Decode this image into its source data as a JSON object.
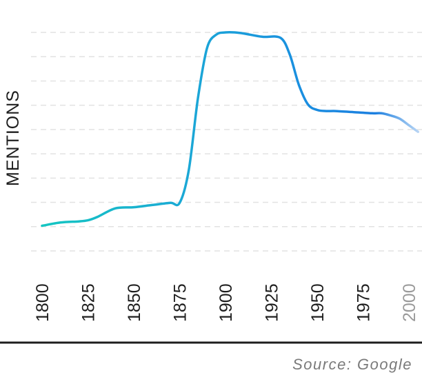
{
  "chart_data": {
    "type": "line",
    "title": "",
    "xlabel": "",
    "ylabel": "MENTIONS",
    "xlim": [
      1800,
      2005
    ],
    "ylim": [
      0,
      10
    ],
    "x_ticks": [
      1800,
      1825,
      1850,
      1875,
      1900,
      1925,
      1950,
      1975,
      2000
    ],
    "faded_ticks": [
      2000
    ],
    "grid": "horizontal-dashed",
    "y_tick_labels": false,
    "x": [
      1800,
      1810,
      1820,
      1825,
      1830,
      1840,
      1850,
      1860,
      1870,
      1875,
      1880,
      1885,
      1890,
      1895,
      1900,
      1905,
      1910,
      1920,
      1930,
      1935,
      1940,
      1945,
      1950,
      1955,
      1960,
      1970,
      1980,
      1985,
      1990,
      1995,
      2000,
      2005
    ],
    "series": [
      {
        "values": [
          1.15,
          1.3,
          1.35,
          1.4,
          1.55,
          1.95,
          2.0,
          2.1,
          2.2,
          2.2,
          3.7,
          7.0,
          9.3,
          9.9,
          10.0,
          10.0,
          9.95,
          9.8,
          9.75,
          9.0,
          7.6,
          6.7,
          6.45,
          6.4,
          6.4,
          6.35,
          6.3,
          6.3,
          6.2,
          6.05,
          5.75,
          5.45
        ]
      }
    ],
    "line_colors": [
      "#14c8c0",
      "#1ba8d6",
      "#1a8ee0",
      "#1b7fe0"
    ],
    "projection_color": "#c5dcf6"
  },
  "footer": {
    "source": "Source: Google"
  }
}
